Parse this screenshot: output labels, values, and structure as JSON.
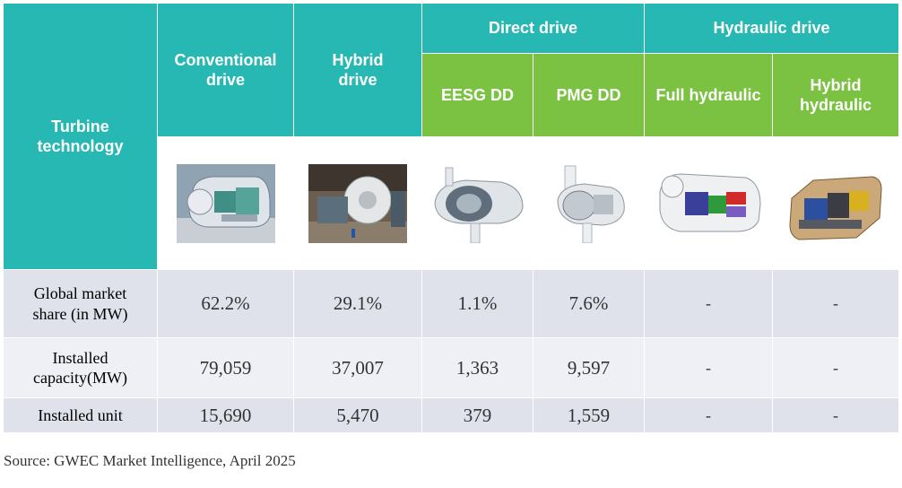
{
  "header": {
    "turbine_technology": "Turbine technology",
    "conventional": "Conventional drive",
    "hybrid": "Hybrid drive",
    "direct_drive": "Direct drive",
    "hydraulic_drive": "Hydraulic drive",
    "eesg": "EESG DD",
    "pmg": "PMG DD",
    "full_hydraulic": "Full hydraulic",
    "hybrid_hydraulic": "Hybrid hydraulic"
  },
  "rows": {
    "market_share": {
      "label": "Global market share (in MW)",
      "values": [
        "62.2%",
        "29.1%",
        "1.1%",
        "7.6%",
        "-",
        "-"
      ]
    },
    "capacity": {
      "label": "Installed capacity(MW)",
      "values": [
        "79,059",
        "37,007",
        "1,363",
        "9,597",
        "-",
        "-"
      ]
    },
    "units": {
      "label": "Installed unit",
      "values": [
        "15,690",
        "5,470",
        "379",
        "1,559",
        "-",
        "-"
      ]
    }
  },
  "source": "Source: GWEC Market Intelligence, April 2025",
  "colors": {
    "teal": "#28b8b4",
    "green": "#7cc242",
    "row_dark": "#dfe2ea",
    "row_light": "#eef0f5"
  }
}
